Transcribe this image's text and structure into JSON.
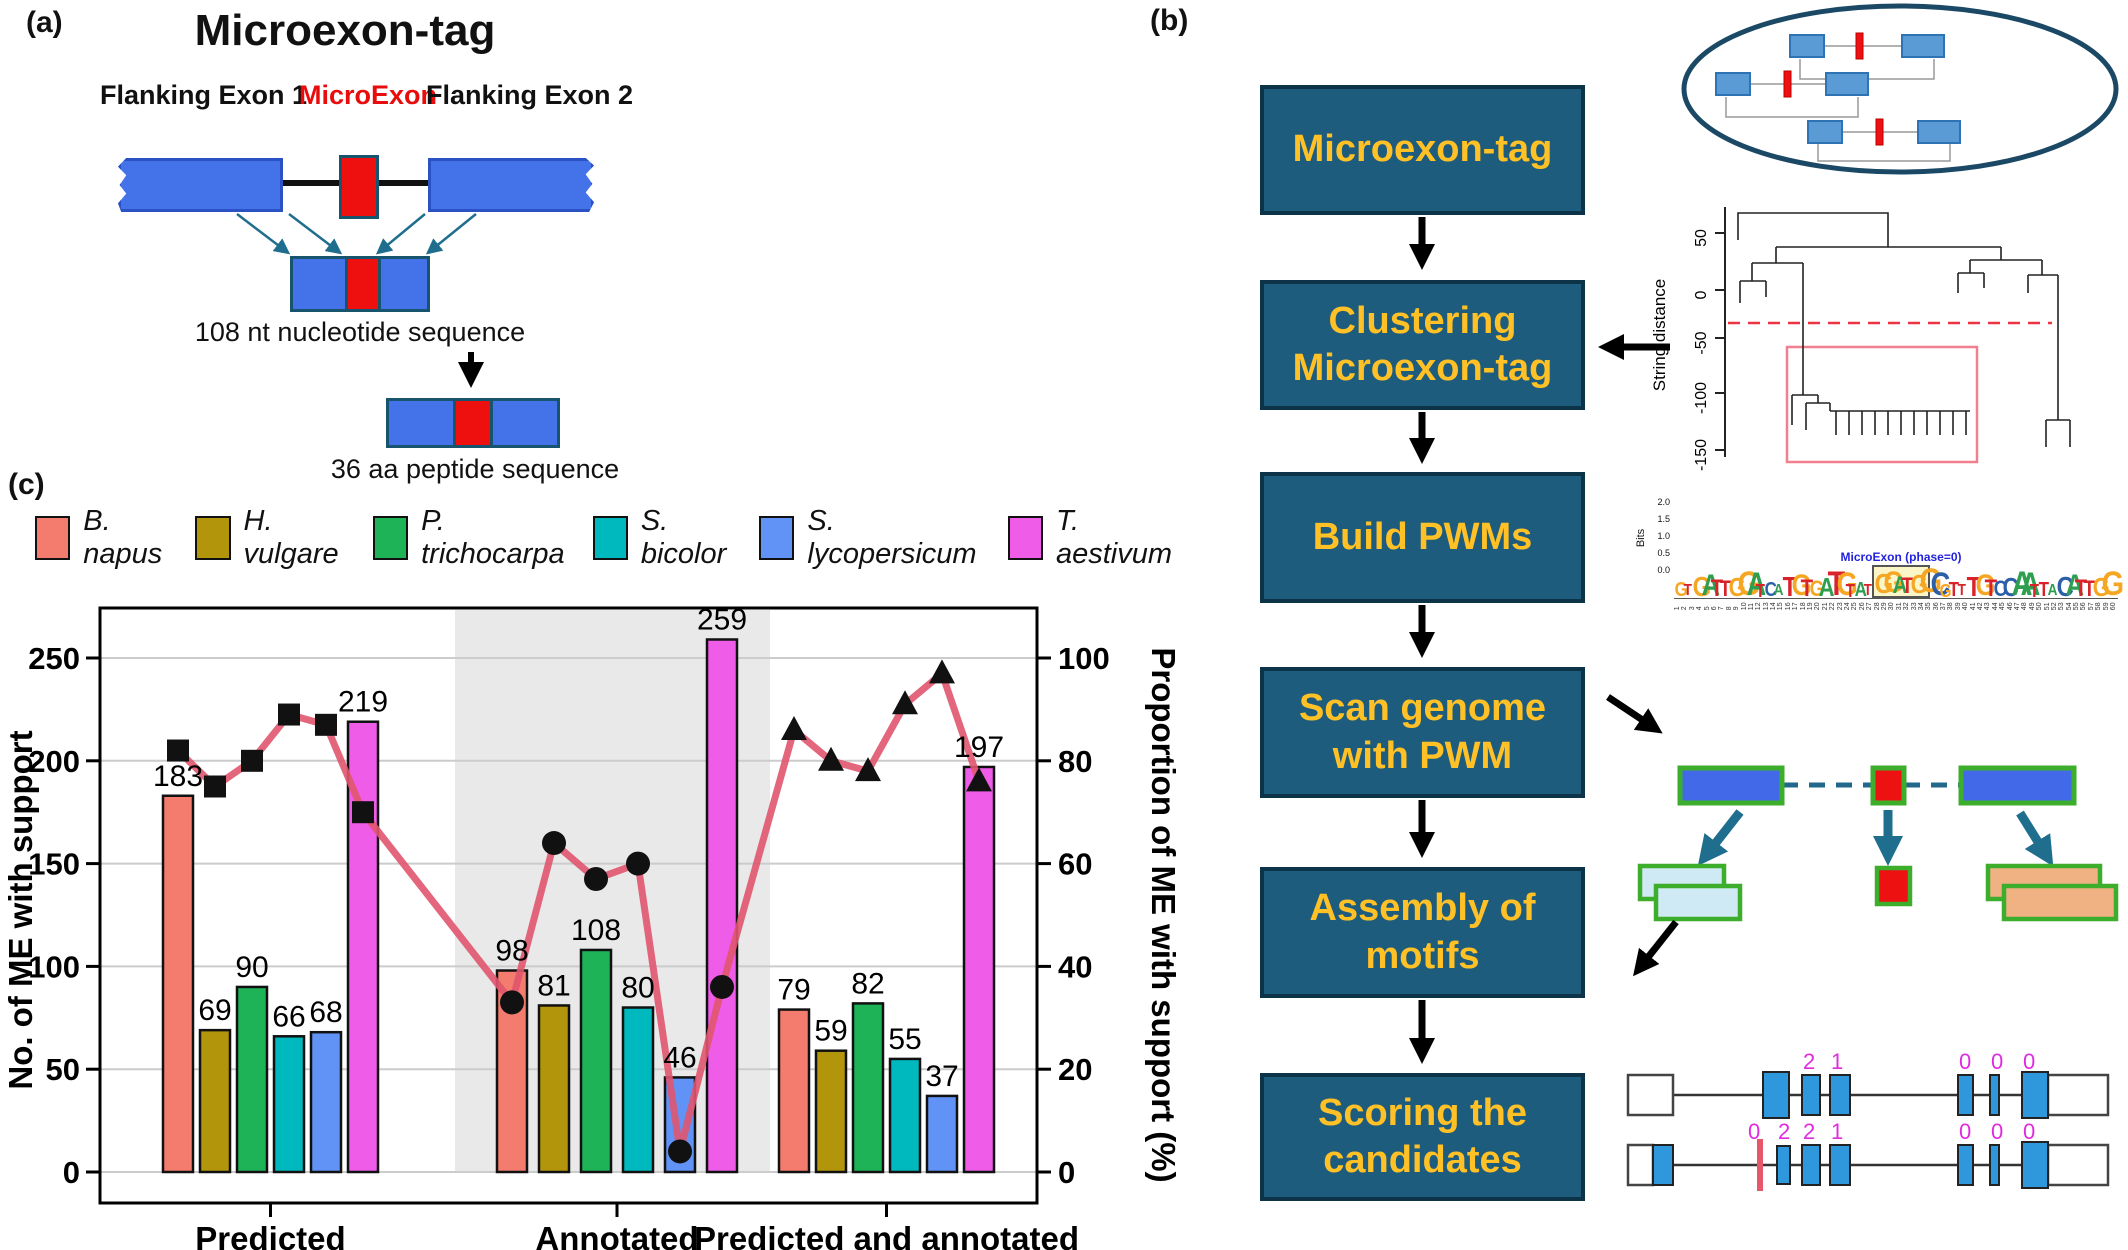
{
  "panel_a": {
    "label": "(a)",
    "title": "Microexon-tag",
    "flanking_exon_1": "Flanking Exon 1",
    "microexon": "MicroExon",
    "flanking_exon_2": "Flanking Exon 2",
    "nt_caption": "108 nt nucleotide sequence",
    "aa_caption": "36 aa peptide sequence"
  },
  "panel_b": {
    "label": "(b)",
    "steps": [
      "Microexon-tag",
      "Clustering Microexon-tag",
      "Build PWMs",
      "Scan genome with PWM",
      "Assembly of motifs",
      "Scoring the candidates"
    ],
    "box_fill": "#1e5c7e",
    "box_text_color": "#ffc125",
    "dendrogram": {
      "ylabel": "String distance",
      "yticks": [
        "50",
        "0",
        "-50",
        "-100",
        "-150"
      ]
    },
    "logo": {
      "title": "MicroExon (phase=0)",
      "ylabel": "Bits",
      "yticks": [
        "2.0",
        "1.5",
        "1.0",
        "0.5",
        "0.0"
      ],
      "sequence": "GTGATTGGATCATGTGATGTATGGATGGCGTTTGTCCAATTACATTGG",
      "highlight_start": 23,
      "highlight_end": 28,
      "x_start": 1,
      "x_end": 60,
      "letter_colors": {
        "A": "#2e9e4f",
        "T": "#d8232a",
        "G": "#f5a623",
        "C": "#2c5fa8"
      }
    },
    "gene_models": {
      "model1_phases": [
        "2",
        "1",
        "0",
        "0",
        "0"
      ],
      "model2_phases": [
        "0",
        "2",
        "2",
        "1",
        "0",
        "0",
        "0"
      ],
      "phase_color": "#e02be0"
    }
  },
  "panel_c": {
    "label": "(c)"
  },
  "chart_data": {
    "type": "bar+line",
    "categories": [
      "Predicted",
      "Annotated",
      "Predicted and annotated"
    ],
    "species": [
      {
        "name": "B. napus",
        "color": "#f47c6e"
      },
      {
        "name": "H. vulgare",
        "color": "#b2950b"
      },
      {
        "name": "P. trichocarpa",
        "color": "#1eb356"
      },
      {
        "name": "S. bicolor",
        "color": "#00b9be"
      },
      {
        "name": "S. lycopersicum",
        "color": "#6193f7"
      },
      {
        "name": "T. aestivum",
        "color": "#ee5ce8"
      }
    ],
    "bar_series": [
      {
        "category": "Predicted",
        "values": [
          183,
          69,
          90,
          66,
          68,
          219
        ]
      },
      {
        "category": "Annotated",
        "values": [
          98,
          81,
          108,
          80,
          46,
          259
        ]
      },
      {
        "category": "Predicted and annotated",
        "values": [
          79,
          59,
          82,
          55,
          37,
          197
        ]
      }
    ],
    "line_series_pct": [
      {
        "category": "Predicted",
        "marker": "square",
        "values": [
          82,
          75,
          80,
          89,
          87,
          70
        ]
      },
      {
        "category": "Annotated",
        "marker": "circle",
        "values": [
          33,
          64,
          57,
          60,
          4,
          36
        ]
      },
      {
        "category": "Predicted and annotated",
        "marker": "triangle",
        "values": [
          86,
          80,
          78,
          91,
          97,
          76
        ]
      }
    ],
    "ylabel_left": "No. of ME with support",
    "ylabel_right": "Proportion of ME with support (%)",
    "yticks_left": [
      0,
      50,
      100,
      150,
      200,
      250
    ],
    "yticks_right": [
      0,
      20,
      40,
      60,
      80,
      100
    ],
    "ylim_left": [
      0,
      274
    ],
    "grid": true,
    "legend_position": "top",
    "line_color": "#e0556e",
    "marker_color": "#111111",
    "shaded_category": "Annotated",
    "shade_color": "#e9e9e9"
  }
}
